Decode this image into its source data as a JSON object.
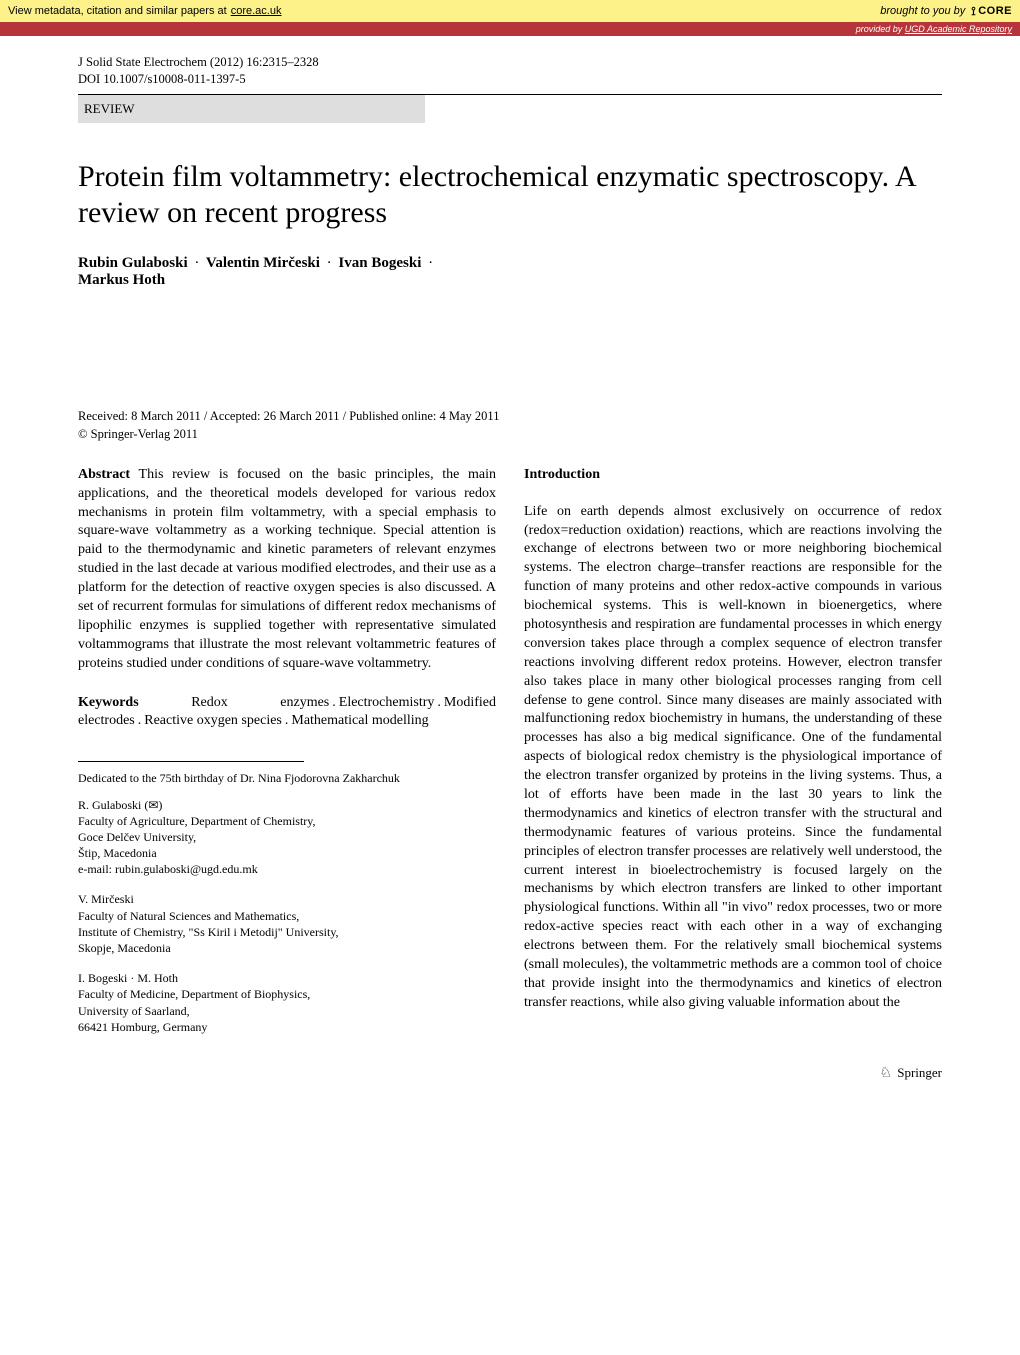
{
  "banner": {
    "metadata_text": "View metadata, citation and similar papers at ",
    "core_link_text": "core.ac.uk",
    "brought_by": "brought to you by",
    "core_label": "CORE",
    "provided_by_prefix": "provided by ",
    "provided_by_source": "UGD Academic Repository"
  },
  "journal": {
    "citation": "J Solid State Electrochem (2012) 16:2315–2328",
    "doi": "DOI 10.1007/s10008-011-1397-5"
  },
  "article_type": "REVIEW",
  "title": "Protein film voltammetry: electrochemical enzymatic spectroscopy. A review on recent progress",
  "authors": {
    "a1": "Rubin Gulaboski",
    "a2": "Valentin Mirčeski",
    "a3": "Ivan Bogeski",
    "a4": "Markus Hoth",
    "sep": "·"
  },
  "dates": {
    "received_line": "Received: 8 March 2011 / Accepted: 26 March 2011 / Published online: 4 May 2011",
    "copyright": "© Springer-Verlag 2011"
  },
  "abstract": {
    "label": "Abstract",
    "text": " This review is focused on the basic principles, the main applications, and the theoretical models developed for various redox mechanisms in protein film voltammetry, with a special emphasis to square-wave voltammetry as a working technique. Special attention is paid to the thermodynamic and kinetic parameters of relevant enzymes studied in the last decade at various modified electrodes, and their use as a platform for the detection of reactive oxygen species is also discussed. A set of recurrent formulas for simulations of different redox mechanisms of lipophilic enzymes is supplied together with representative simulated voltammograms that illustrate the most relevant voltammetric features of proteins studied under conditions of square-wave voltammetry."
  },
  "keywords": {
    "label": "Keywords",
    "k1": "Redox enzymes",
    "k2": "Electrochemistry",
    "k3": "Modified electrodes",
    "k4": "Reactive oxygen species",
    "k5": "Mathematical modelling",
    "sep": "."
  },
  "dedication": "Dedicated to the 75th birthday of Dr. Nina Fjodorovna Zakharchuk",
  "affiliations": {
    "gulaboski": {
      "name": "R. Gulaboski (✉)",
      "line1": "Faculty of Agriculture, Department of Chemistry,",
      "line2": "Goce Delčev University,",
      "line3": "Štip, Macedonia",
      "email": "e-mail: rubin.gulaboski@ugd.edu.mk"
    },
    "mirceski": {
      "name": "V. Mirčeski",
      "line1": "Faculty of Natural Sciences and Mathematics,",
      "line2": "Institute of Chemistry, \"Ss Kiril i Metodij\" University,",
      "line3": "Skopje, Macedonia"
    },
    "bogeski_hoth": {
      "name": "I. Bogeski · M. Hoth",
      "line1": "Faculty of Medicine, Department of Biophysics,",
      "line2": "University of Saarland,",
      "line3": "66421 Homburg, Germany"
    }
  },
  "introduction": {
    "heading": "Introduction",
    "body": "Life on earth depends almost exclusively on occurrence of redox (redox=reduction oxidation) reactions, which are reactions involving the exchange of electrons between two or more neighboring biochemical systems. The electron charge–transfer reactions are responsible for the function of many proteins and other redox-active compounds in various biochemical systems. This is well-known in bioenergetics, where photosynthesis and respiration are fundamental processes in which energy conversion takes place through a complex sequence of electron transfer reactions involving different redox proteins. However, electron transfer also takes place in many other biological processes ranging from cell defense to gene control. Since many diseases are mainly associated with malfunctioning redox biochemistry in humans, the understanding of these processes has also a big medical significance. One of the fundamental aspects of biological redox chemistry is the physiological importance of the electron transfer organized by proteins in the living systems. Thus, a lot of efforts have been made in the last 30 years to link the thermodynamics and kinetics of electron transfer with the structural and thermodynamic features of various proteins. Since the fundamental principles of electron transfer processes are relatively well understood, the current interest in bioelectrochemistry is focused largely on the mechanisms by which electron transfers are linked to other important physiological functions. Within all \"in vivo\" redox processes, two or more redox-active species react with each other in a way of exchanging electrons between them. For the relatively small biochemical systems (small molecules), the voltammetric methods are a common tool of choice that provide insight into the thermodynamics and kinetics of electron transfer reactions, while also giving valuable information about the"
  },
  "footer": {
    "publisher": "Springer"
  },
  "colors": {
    "banner_bg": "#fdf28a",
    "provided_bg": "#b6353a",
    "review_bg": "#dedede",
    "text": "#000000",
    "page_bg": "#ffffff"
  }
}
